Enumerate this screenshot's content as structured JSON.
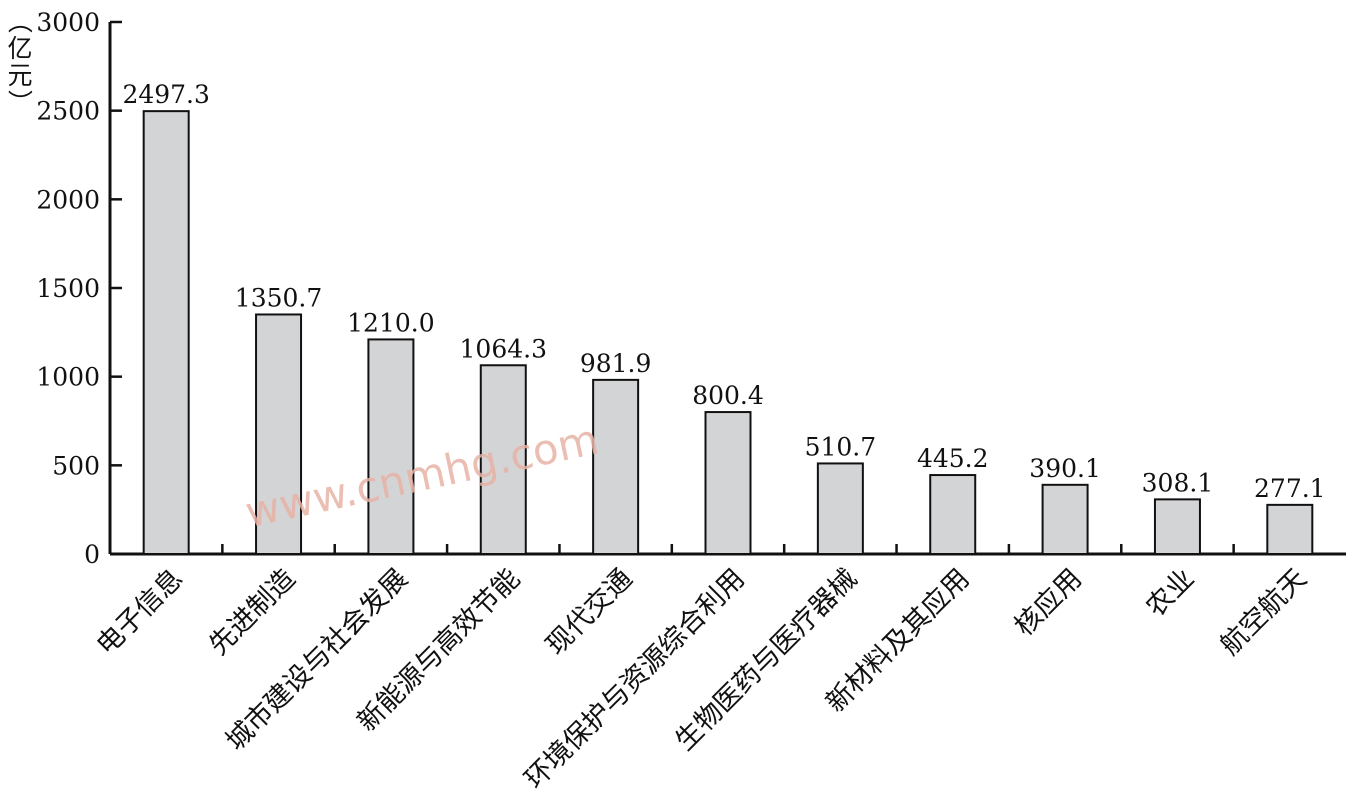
{
  "chart_data": {
    "type": "bar",
    "categories": [
      "电子信息",
      "先进制造",
      "城市建设与社会发展",
      "新能源与高效节能",
      "现代交通",
      "环境保护与资源综合利用",
      "生物医药与医疗器械",
      "新材料及其应用",
      "核应用",
      "农业",
      "航空航天"
    ],
    "values": [
      2497.3,
      1350.7,
      1210.0,
      1064.3,
      981.9,
      800.4,
      510.7,
      445.2,
      390.1,
      308.1,
      277.1
    ],
    "value_labels": [
      "2497.3",
      "1350.7",
      "1210.0",
      "1064.3",
      "981.9",
      "800.4",
      "510.7",
      "445.2",
      "390.1",
      "308.1",
      "277.1"
    ],
    "ylabel": "（亿元）",
    "ylim": [
      0,
      3000
    ],
    "yticks": [
      0,
      500,
      1000,
      1500,
      2000,
      2500,
      3000
    ],
    "grid": false,
    "bar_color": "#d3d4d6",
    "watermark": "www.cnmhg.com"
  }
}
